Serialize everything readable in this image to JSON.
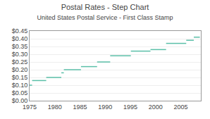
{
  "chart_data": {
    "type": "line",
    "title": "Postal Rates - Step Chart",
    "subtitle": "United States Postal Service - First Class Stamp",
    "x": [
      1975.0,
      1975.5,
      null,
      1975.5,
      1978.3,
      null,
      1978.3,
      1981.3,
      null,
      1981.3,
      1981.8,
      null,
      1981.8,
      1985.2,
      null,
      1985.2,
      1988.4,
      null,
      1988.4,
      1991.0,
      null,
      1991.0,
      1995.1,
      null,
      1995.1,
      1999.0,
      null,
      1999.0,
      2002.1,
      null,
      2002.1,
      2006.1,
      null,
      2006.1,
      2007.6,
      null,
      2007.6,
      2008.8
    ],
    "values": [
      0.1,
      0.1,
      null,
      0.13,
      0.13,
      null,
      0.15,
      0.15,
      null,
      0.18,
      0.18,
      null,
      0.2,
      0.2,
      null,
      0.22,
      0.22,
      null,
      0.25,
      0.25,
      null,
      0.29,
      0.29,
      null,
      0.32,
      0.32,
      null,
      0.33,
      0.33,
      null,
      0.37,
      0.37,
      null,
      0.39,
      0.39,
      null,
      0.41,
      0.41
    ],
    "color": "#5bbfa8",
    "xlim": [
      1975,
      2009
    ],
    "ylim": [
      0.0,
      0.45
    ],
    "xticks": [
      1975,
      1980,
      1985,
      1990,
      1995,
      2000,
      2005
    ],
    "yticks": [
      {
        "value": 0.0,
        "label": "$0.00"
      },
      {
        "value": 0.05,
        "label": "$0.05"
      },
      {
        "value": 0.1,
        "label": "$0.10"
      },
      {
        "value": 0.15,
        "label": "$0.15"
      },
      {
        "value": 0.2,
        "label": "$0.20"
      },
      {
        "value": 0.25,
        "label": "$0.25"
      },
      {
        "value": 0.3,
        "label": "$0.30"
      },
      {
        "value": 0.35,
        "label": "$0.35"
      },
      {
        "value": 0.4,
        "label": "$0.40"
      },
      {
        "value": 0.45,
        "label": "$0.45"
      }
    ],
    "grid": "y"
  }
}
